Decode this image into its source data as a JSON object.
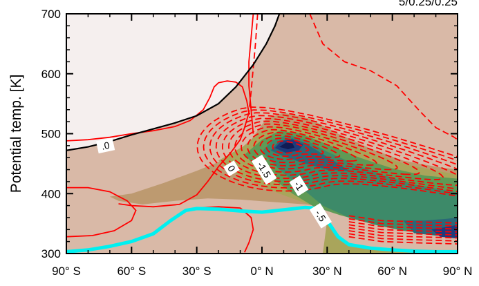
{
  "chart_data": {
    "type": "contour",
    "title": "",
    "corner_label": "5/0.25/0.25",
    "xlabel": "",
    "ylabel": "Potential temp. [K]",
    "xlim": [
      -90,
      90
    ],
    "ylim": [
      300,
      700
    ],
    "x_ticks": [
      {
        "value": -90,
        "label": "90° S"
      },
      {
        "value": -60,
        "label": "60° S"
      },
      {
        "value": -30,
        "label": "30° S"
      },
      {
        "value": 0,
        "label": "0° N"
      },
      {
        "value": 30,
        "label": "30° N"
      },
      {
        "value": 60,
        "label": "60° N"
      },
      {
        "value": 90,
        "label": "90° N"
      }
    ],
    "y_ticks": [
      {
        "value": 300,
        "label": "300"
      },
      {
        "value": 400,
        "label": "400"
      },
      {
        "value": 500,
        "label": "500"
      },
      {
        "value": 600,
        "label": "600"
      },
      {
        "value": 700,
        "label": "700"
      }
    ],
    "colors": {
      "background": "#d9b9a7",
      "white_region": "#f5efee",
      "fill_level_1": "#bd9a70",
      "fill_level_2": "#a9a55b",
      "fill_level_3": "#5f9a56",
      "fill_level_4": "#3d8a69",
      "fill_level_5": "#2a6878",
      "fill_level_6": "#1e3c7d",
      "fill_level_7": "#101b55",
      "negative_contour": "#ff0000",
      "zero_contour": "#ff0000",
      "tropopause_line": "#00f0f0",
      "black_contour": "#000000"
    },
    "contour_labels": [
      {
        "text": ".0",
        "x": -72,
        "y": 480
      },
      {
        "text": "0",
        "x": -14,
        "y": 442
      },
      {
        "text": "-1.5",
        "x": 1,
        "y": 440
      },
      {
        "text": "-1",
        "x": 17,
        "y": 413
      },
      {
        "text": "-.5",
        "x": 27,
        "y": 363
      }
    ],
    "white_region_boundary": [
      [
        -90,
        472
      ],
      [
        -80,
        478
      ],
      [
        -70,
        487
      ],
      [
        -60,
        498
      ],
      [
        -50,
        508
      ],
      [
        -40,
        518
      ],
      [
        -30,
        530
      ],
      [
        -20,
        550
      ],
      [
        -12,
        578
      ],
      [
        -4,
        615
      ],
      [
        2,
        650
      ],
      [
        6,
        680
      ],
      [
        8,
        700
      ]
    ],
    "tropopause": [
      [
        -90,
        303
      ],
      [
        -80,
        306
      ],
      [
        -70,
        312
      ],
      [
        -60,
        320
      ],
      [
        -50,
        333
      ],
      [
        -42,
        355
      ],
      [
        -35,
        372
      ],
      [
        -30,
        375
      ],
      [
        -20,
        374
      ],
      [
        -10,
        371
      ],
      [
        0,
        369
      ],
      [
        10,
        373
      ],
      [
        20,
        377
      ],
      [
        26,
        375
      ],
      [
        30,
        355
      ],
      [
        35,
        328
      ],
      [
        40,
        315
      ],
      [
        50,
        309
      ],
      [
        60,
        306
      ],
      [
        70,
        304
      ],
      [
        80,
        303
      ],
      [
        90,
        303
      ]
    ],
    "zero_contours": [
      [
        [
          -90,
          488
        ],
        [
          -80,
          490
        ],
        [
          -70,
          494
        ],
        [
          -60,
          500
        ],
        [
          -50,
          505
        ],
        [
          -40,
          512
        ],
        [
          -33,
          522
        ],
        [
          -27,
          540
        ],
        [
          -24,
          560
        ],
        [
          -22,
          578
        ],
        [
          -20,
          585
        ],
        [
          -16,
          588
        ],
        [
          -12,
          586
        ],
        [
          -9,
          578
        ],
        [
          -7,
          555
        ],
        [
          -6,
          535
        ],
        [
          -8,
          510
        ],
        [
          -10,
          490
        ],
        [
          -14,
          470
        ],
        [
          -20,
          445
        ],
        [
          -25,
          420
        ],
        [
          -30,
          398
        ],
        [
          -38,
          382
        ],
        [
          -50,
          378
        ],
        [
          -60,
          380
        ],
        [
          -66,
          383
        ]
      ],
      [
        [
          -4,
          700
        ],
        [
          -5,
          660
        ],
        [
          -6,
          620
        ],
        [
          -6,
          580
        ],
        [
          -5,
          540
        ],
        [
          -4,
          500
        ]
      ],
      [
        [
          -90,
          410
        ],
        [
          -80,
          410
        ],
        [
          -70,
          403
        ],
        [
          -62,
          388
        ],
        [
          -58,
          372
        ],
        [
          -60,
          355
        ],
        [
          -68,
          338
        ],
        [
          -78,
          330
        ],
        [
          -90,
          328
        ]
      ],
      [
        [
          -30,
          376
        ],
        [
          -20,
          378
        ],
        [
          -10,
          376
        ],
        [
          -5,
          360
        ],
        [
          -4,
          340
        ],
        [
          -6,
          318
        ],
        [
          -8,
          302
        ]
      ]
    ],
    "negative_contour_levels": [
      "-.5",
      "-1",
      "-1.5"
    ],
    "minimum_center": {
      "x": 11,
      "y": 478
    }
  }
}
